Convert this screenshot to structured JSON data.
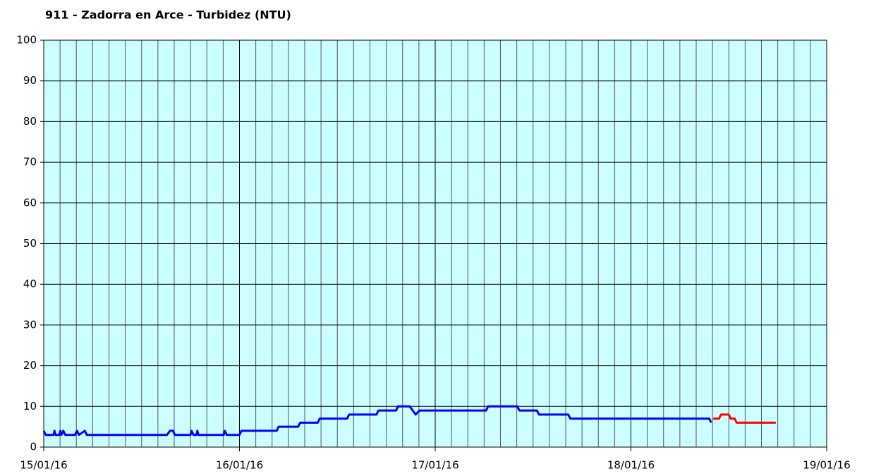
{
  "chart_data": {
    "type": "line",
    "title": "911 - Zadorra en Arce - Turbidez (NTU)",
    "xlim": [
      0,
      4
    ],
    "xticks": [
      {
        "value": 0,
        "label": "15/01/16"
      },
      {
        "value": 1,
        "label": "16/01/16"
      },
      {
        "value": 2,
        "label": "17/01/16"
      },
      {
        "value": 3,
        "label": "18/01/16"
      },
      {
        "value": 4,
        "label": "19/01/16"
      }
    ],
    "ylim": [
      0,
      100
    ],
    "yticks": [
      0,
      10,
      20,
      30,
      40,
      50,
      60,
      70,
      80,
      90,
      100
    ],
    "grid": true,
    "series": [
      {
        "color": "#0000ff",
        "x": [
          0,
          0.01,
          0.05,
          0.055,
          0.06,
          0.08,
          0.085,
          0.09,
          0.1,
          0.11,
          0.16,
          0.17,
          0.18,
          0.21,
          0.22,
          0.63,
          0.645,
          0.66,
          0.67,
          0.75,
          0.755,
          0.765,
          0.78,
          0.785,
          0.79,
          0.92,
          0.925,
          0.935,
          1.0,
          1.01,
          1.19,
          1.2,
          1.3,
          1.31,
          1.4,
          1.41,
          1.55,
          1.56,
          1.7,
          1.71,
          1.8,
          1.81,
          1.87,
          1.9,
          1.92,
          2.26,
          2.27,
          2.42,
          2.43,
          2.52,
          2.53,
          2.68,
          2.69,
          3.4,
          3.41
        ],
        "values": [
          4,
          3,
          3,
          4,
          3,
          3,
          4,
          3,
          4,
          3,
          3,
          4,
          3,
          4,
          3,
          3,
          4,
          4,
          3,
          3,
          4,
          3,
          3,
          4,
          3,
          3,
          4,
          3,
          3,
          4,
          4,
          5,
          5,
          6,
          6,
          7,
          7,
          8,
          8,
          9,
          9,
          10,
          10,
          8,
          9,
          9,
          10,
          10,
          9,
          9,
          8,
          8,
          7,
          7,
          6
        ]
      },
      {
        "color": "#ff0000",
        "x": [
          3.42,
          3.45,
          3.46,
          3.5,
          3.51,
          3.53,
          3.54,
          3.74
        ],
        "values": [
          7,
          7,
          8,
          8,
          7,
          7,
          6,
          6
        ]
      }
    ]
  }
}
